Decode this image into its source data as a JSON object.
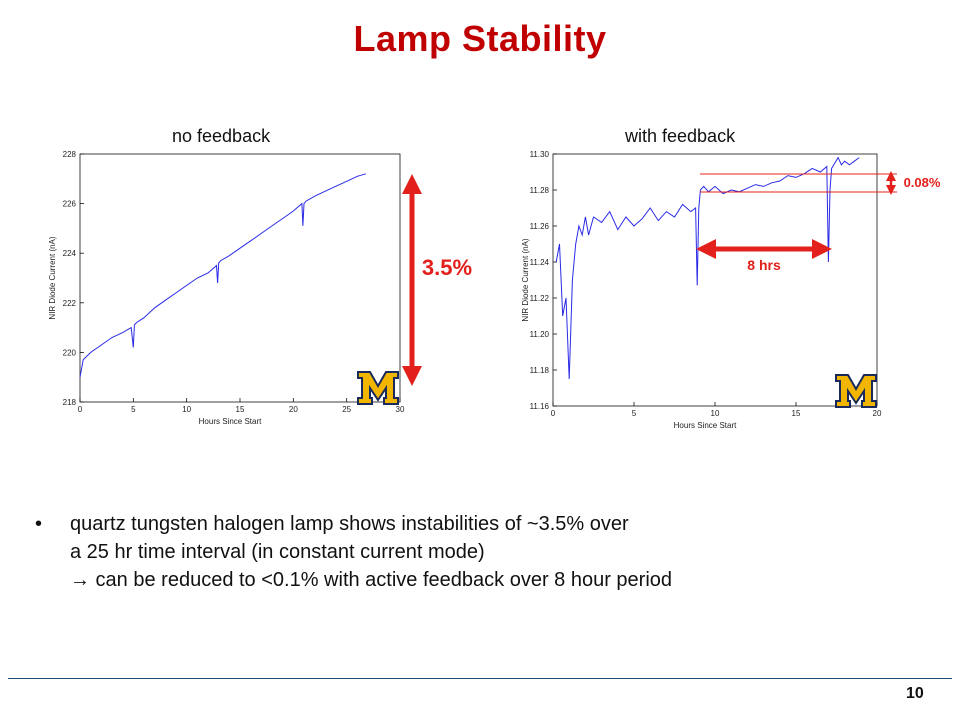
{
  "slide": {
    "title": "Lamp Stability",
    "page_number": "10",
    "bullets": [
      {
        "marker": "•",
        "lines": [
          "quartz tungsten halogen lamp shows instabilities of ~3.5% over",
          "a 25 hr time interval (in constant current mode)",
          "→ can be reduced to <0.1% with active feedback over 8 hour period"
        ]
      }
    ]
  },
  "chart_data": [
    {
      "type": "line",
      "title": "no feedback",
      "xlabel": "Hours Since Start",
      "ylabel": "NIR Diode Current (nA)",
      "xlim": [
        0,
        30
      ],
      "ylim": [
        218,
        228
      ],
      "xticks": [
        0,
        5,
        10,
        15,
        20,
        25,
        30
      ],
      "yticks": [
        218,
        220,
        222,
        224,
        226,
        228
      ],
      "grid": false,
      "series": [
        {
          "color": "#2a2ae6",
          "x": [
            0,
            0.3,
            1,
            2,
            3,
            4,
            4.8,
            5.0,
            5.1,
            5.3,
            6,
            7,
            8,
            9,
            10,
            11,
            12,
            12.8,
            12.9,
            13.0,
            13.2,
            14,
            15,
            16,
            17,
            18,
            19,
            20,
            20.8,
            20.9,
            21.0,
            21.2,
            22,
            23,
            24,
            25,
            26,
            26.8
          ],
          "y": [
            219.0,
            219.7,
            220.0,
            220.3,
            220.6,
            220.8,
            221.0,
            220.2,
            221.1,
            221.2,
            221.4,
            221.8,
            222.1,
            222.4,
            222.7,
            223.0,
            223.2,
            223.5,
            222.8,
            223.6,
            223.7,
            223.9,
            224.2,
            224.5,
            224.8,
            225.1,
            225.4,
            225.7,
            226.0,
            225.1,
            226.0,
            226.1,
            226.3,
            226.5,
            226.7,
            226.9,
            227.1,
            227.2
          ]
        }
      ],
      "annotations": [
        {
          "text": "3.5%",
          "kind": "vertical-double-arrow"
        }
      ],
      "logo": "block-M"
    },
    {
      "type": "line",
      "title": "with feedback",
      "xlabel": "Hours Since Start",
      "ylabel": "NIR Diode Current (nA)",
      "xlim": [
        0,
        20
      ],
      "ylim": [
        11.16,
        11.3
      ],
      "xticks": [
        0,
        5,
        10,
        15,
        20
      ],
      "yticks": [
        11.16,
        11.18,
        11.2,
        11.22,
        11.24,
        11.26,
        11.28,
        11.3
      ],
      "ytick_labels": [
        "11.16",
        "11.18",
        "11.20",
        "11.22",
        "11.24",
        "11.26",
        "11.28",
        "11.30"
      ],
      "grid": false,
      "series": [
        {
          "color": "#2a2ae6",
          "x": [
            0.2,
            0.4,
            0.6,
            0.8,
            1.0,
            1.2,
            1.4,
            1.6,
            1.8,
            2.0,
            2.2,
            2.5,
            3,
            3.5,
            4,
            4.5,
            5,
            5.5,
            6,
            6.5,
            7,
            7.5,
            8,
            8.5,
            8.8,
            8.9,
            9.0,
            9.1,
            9.3,
            9.6,
            10,
            10.5,
            11,
            11.5,
            12,
            12.5,
            13,
            13.5,
            14,
            14.5,
            15,
            15.5,
            16,
            16.5,
            16.9,
            17.0,
            17.1,
            17.2,
            17.4,
            17.6,
            17.8,
            18,
            18.3,
            18.6,
            18.9
          ],
          "y": [
            11.24,
            11.25,
            11.21,
            11.22,
            11.175,
            11.23,
            11.25,
            11.26,
            11.255,
            11.265,
            11.255,
            11.265,
            11.262,
            11.268,
            11.258,
            11.265,
            11.26,
            11.264,
            11.27,
            11.263,
            11.268,
            11.265,
            11.272,
            11.268,
            11.27,
            11.227,
            11.27,
            11.28,
            11.282,
            11.279,
            11.282,
            11.278,
            11.28,
            11.279,
            11.281,
            11.283,
            11.282,
            11.284,
            11.285,
            11.288,
            11.287,
            11.289,
            11.292,
            11.29,
            11.293,
            11.24,
            11.28,
            11.292,
            11.295,
            11.298,
            11.294,
            11.296,
            11.294,
            11.296,
            11.298
          ]
        }
      ],
      "annotations": [
        {
          "text": "8 hrs",
          "kind": "horizontal-double-arrow",
          "x_range": [
            9,
            17
          ]
        },
        {
          "text": "0.08%",
          "kind": "vertical-double-arrow",
          "y_range": [
            11.279,
            11.289
          ]
        }
      ],
      "logo": "block-M"
    }
  ],
  "colors": {
    "title": "#c00000",
    "annotation": "#e3201b",
    "series": "#2a2ae6",
    "logo_fill": "#f2b600",
    "logo_outline": "#1a2a5a",
    "footer_line": "#1f4e79"
  }
}
